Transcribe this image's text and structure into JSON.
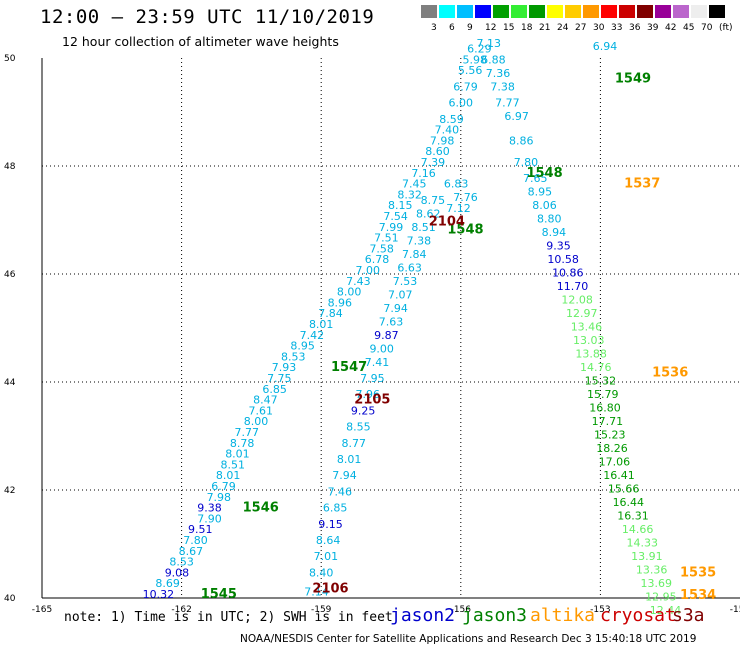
{
  "header": {
    "title": "12:00 — 23:59 UTC 11/10/2019",
    "subtitle": "12 hour collection of altimeter wave heights"
  },
  "legend": {
    "colors": [
      "#7f7f7f",
      "#00ffff",
      "#00bfff",
      "#0000ff",
      "#00a000",
      "#33ee33",
      "#009900",
      "#ffff00",
      "#ffcc00",
      "#ff9900",
      "#ff0000",
      "#cc0000",
      "#800000",
      "#990099",
      "#bb66cc",
      "#eeeeee",
      "#000000"
    ],
    "labels": [
      "3",
      "6",
      "9",
      "12",
      "15",
      "18",
      "21",
      "24",
      "27",
      "30",
      "33",
      "36",
      "39",
      "42",
      "45",
      "70",
      "(ft)"
    ]
  },
  "map": {
    "lon_ticks": [
      "-165",
      "-162",
      "-159",
      "-156",
      "-153",
      "-150"
    ],
    "lat_ticks": [
      "40",
      "42",
      "44",
      "46",
      "48",
      "50"
    ],
    "track_labels": [
      {
        "id": "1545",
        "color": "#008000",
        "lon": -161.2,
        "lat": 40.0
      },
      {
        "id": "1546",
        "color": "#008000",
        "lon": -160.3,
        "lat": 41.6
      },
      {
        "id": "1547",
        "color": "#008000",
        "lon": -158.4,
        "lat": 44.2
      },
      {
        "id": "1548",
        "color": "#008000",
        "lon": -155.9,
        "lat": 46.75
      },
      {
        "id": "2104",
        "color": "#800000",
        "lon": -156.3,
        "lat": 46.9
      },
      {
        "id": "2105",
        "color": "#800000",
        "lon": -157.9,
        "lat": 43.6
      },
      {
        "id": "2106",
        "color": "#800000",
        "lon": -158.8,
        "lat": 40.1
      },
      {
        "id": "1537",
        "color": "#ff9900",
        "lon": -152.1,
        "lat": 47.6
      },
      {
        "id": "1536",
        "color": "#ff9900",
        "lon": -151.5,
        "lat": 44.1
      },
      {
        "id": "1535",
        "color": "#ff9900",
        "lon": -150.9,
        "lat": 40.4
      },
      {
        "id": "1534",
        "color": "#ff9900",
        "lon": -150.9,
        "lat": 39.98
      },
      {
        "id": "1548",
        "color": "#008000",
        "lon": -154.2,
        "lat": 47.8
      },
      {
        "id": "1549",
        "color": "#008000",
        "lon": -152.3,
        "lat": 49.55
      }
    ],
    "values": [
      {
        "t": "10.32",
        "c": "#0000cc",
        "lon": -162.5,
        "lat": 40.0
      },
      {
        "t": "8.69",
        "c": "#00b0e0",
        "lon": -162.3,
        "lat": 40.2
      },
      {
        "t": "9.08",
        "c": "#0000cc",
        "lon": -162.1,
        "lat": 40.4
      },
      {
        "t": "8.53",
        "c": "#00b0e0",
        "lon": -162.0,
        "lat": 40.6
      },
      {
        "t": "8.67",
        "c": "#00b0e0",
        "lon": -161.8,
        "lat": 40.8
      },
      {
        "t": "7.80",
        "c": "#00b0e0",
        "lon": -161.7,
        "lat": 41.0
      },
      {
        "t": "9.51",
        "c": "#0000cc",
        "lon": -161.6,
        "lat": 41.2
      },
      {
        "t": "7.90",
        "c": "#00b0e0",
        "lon": -161.4,
        "lat": 41.4
      },
      {
        "t": "9.38",
        "c": "#0000cc",
        "lon": -161.4,
        "lat": 41.6
      },
      {
        "t": "7.98",
        "c": "#00b0e0",
        "lon": -161.2,
        "lat": 41.8
      },
      {
        "t": "6.79",
        "c": "#00b0e0",
        "lon": -161.1,
        "lat": 42.0
      },
      {
        "t": "8.01",
        "c": "#00b0e0",
        "lon": -161.0,
        "lat": 42.2
      },
      {
        "t": "8.51",
        "c": "#00b0e0",
        "lon": -160.9,
        "lat": 42.4
      },
      {
        "t": "8.01",
        "c": "#00b0e0",
        "lon": -160.8,
        "lat": 42.6
      },
      {
        "t": "8.78",
        "c": "#00b0e0",
        "lon": -160.7,
        "lat": 42.8
      },
      {
        "t": "7.77",
        "c": "#00b0e0",
        "lon": -160.6,
        "lat": 43.0
      },
      {
        "t": "8.00",
        "c": "#00b0e0",
        "lon": -160.4,
        "lat": 43.2
      },
      {
        "t": "7.61",
        "c": "#00b0e0",
        "lon": -160.3,
        "lat": 43.4
      },
      {
        "t": "8.47",
        "c": "#00b0e0",
        "lon": -160.2,
        "lat": 43.6
      },
      {
        "t": "6.85",
        "c": "#00b0e0",
        "lon": -160.0,
        "lat": 43.8
      },
      {
        "t": "7.75",
        "c": "#00b0e0",
        "lon": -159.9,
        "lat": 44.0
      },
      {
        "t": "7.93",
        "c": "#00b0e0",
        "lon": -159.8,
        "lat": 44.2
      },
      {
        "t": "8.53",
        "c": "#00b0e0",
        "lon": -159.6,
        "lat": 44.4
      },
      {
        "t": "8.95",
        "c": "#00b0e0",
        "lon": -159.4,
        "lat": 44.6
      },
      {
        "t": "7.42",
        "c": "#00b0e0",
        "lon": -159.2,
        "lat": 44.8
      },
      {
        "t": "8.01",
        "c": "#00b0e0",
        "lon": -159.0,
        "lat": 45.0
      },
      {
        "t": "7.84",
        "c": "#00b0e0",
        "lon": -158.8,
        "lat": 45.2
      },
      {
        "t": "8.96",
        "c": "#00b0e0",
        "lon": -158.6,
        "lat": 45.4
      },
      {
        "t": "8.00",
        "c": "#00b0e0",
        "lon": -158.4,
        "lat": 45.6
      },
      {
        "t": "7.43",
        "c": "#00b0e0",
        "lon": -158.2,
        "lat": 45.8
      },
      {
        "t": "7.00",
        "c": "#00b0e0",
        "lon": -158.0,
        "lat": 46.0
      },
      {
        "t": "6.78",
        "c": "#00b0e0",
        "lon": -157.8,
        "lat": 46.2
      },
      {
        "t": "7.58",
        "c": "#00b0e0",
        "lon": -157.7,
        "lat": 46.4
      },
      {
        "t": "7.51",
        "c": "#00b0e0",
        "lon": -157.6,
        "lat": 46.6
      },
      {
        "t": "7.99",
        "c": "#00b0e0",
        "lon": -157.5,
        "lat": 46.8
      },
      {
        "t": "7.54",
        "c": "#00b0e0",
        "lon": -157.4,
        "lat": 47.0
      },
      {
        "t": "8.15",
        "c": "#00b0e0",
        "lon": -157.3,
        "lat": 47.2
      },
      {
        "t": "8.32",
        "c": "#00b0e0",
        "lon": -157.1,
        "lat": 47.4
      },
      {
        "t": "7.45",
        "c": "#00b0e0",
        "lon": -157.0,
        "lat": 47.6
      },
      {
        "t": "7.16",
        "c": "#00b0e0",
        "lon": -156.8,
        "lat": 47.8
      },
      {
        "t": "7.39",
        "c": "#00b0e0",
        "lon": -156.6,
        "lat": 48.0
      },
      {
        "t": "8.60",
        "c": "#00b0e0",
        "lon": -156.5,
        "lat": 48.2
      },
      {
        "t": "7.98",
        "c": "#00b0e0",
        "lon": -156.4,
        "lat": 48.4
      },
      {
        "t": "7.40",
        "c": "#00b0e0",
        "lon": -156.3,
        "lat": 48.6
      },
      {
        "t": "8.59",
        "c": "#00b0e0",
        "lon": -156.2,
        "lat": 48.8
      },
      {
        "t": "6.00",
        "c": "#00b0e0",
        "lon": -156.0,
        "lat": 49.1
      },
      {
        "t": "6.79",
        "c": "#00b0e0",
        "lon": -155.9,
        "lat": 49.4
      },
      {
        "t": "5.56",
        "c": "#00b0e0",
        "lon": -155.8,
        "lat": 49.7
      },
      {
        "t": "5.98",
        "c": "#00b0e0",
        "lon": -155.7,
        "lat": 49.9
      },
      {
        "t": "6.29",
        "c": "#00b0e0",
        "lon": -155.6,
        "lat": 50.1
      },
      {
        "t": "7.13",
        "c": "#00b0e0",
        "lon": -155.4,
        "lat": 50.2
      },
      {
        "t": "6.88",
        "c": "#00b0e0",
        "lon": -155.3,
        "lat": 49.9
      },
      {
        "t": "7.36",
        "c": "#00b0e0",
        "lon": -155.2,
        "lat": 49.65
      },
      {
        "t": "7.38",
        "c": "#00b0e0",
        "lon": -155.1,
        "lat": 49.4
      },
      {
        "t": "7.77",
        "c": "#00b0e0",
        "lon": -155.0,
        "lat": 49.1
      },
      {
        "t": "6.83",
        "c": "#00b0e0",
        "lon": -156.1,
        "lat": 47.6
      },
      {
        "t": "7.76",
        "c": "#00b0e0",
        "lon": -155.9,
        "lat": 47.35
      },
      {
        "t": "7.12",
        "c": "#00b0e0",
        "lon": -156.05,
        "lat": 47.15
      },
      {
        "t": "7.14",
        "c": "#00b0e0",
        "lon": -159.1,
        "lat": 40.05
      },
      {
        "t": "8.40",
        "c": "#00b0e0",
        "lon": -159.0,
        "lat": 40.4
      },
      {
        "t": "7.01",
        "c": "#00b0e0",
        "lon": -158.9,
        "lat": 40.7
      },
      {
        "t": "8.64",
        "c": "#00b0e0",
        "lon": -158.85,
        "lat": 41.0
      },
      {
        "t": "9.15",
        "c": "#0000cc",
        "lon": -158.8,
        "lat": 41.3
      },
      {
        "t": "6.85",
        "c": "#00b0e0",
        "lon": -158.7,
        "lat": 41.6
      },
      {
        "t": "7.46",
        "c": "#00b0e0",
        "lon": -158.6,
        "lat": 41.9
      },
      {
        "t": "7.94",
        "c": "#00b0e0",
        "lon": -158.5,
        "lat": 42.2
      },
      {
        "t": "8.01",
        "c": "#00b0e0",
        "lon": -158.4,
        "lat": 42.5
      },
      {
        "t": "8.77",
        "c": "#00b0e0",
        "lon": -158.3,
        "lat": 42.8
      },
      {
        "t": "8.55",
        "c": "#00b0e0",
        "lon": -158.2,
        "lat": 43.1
      },
      {
        "t": "9.25",
        "c": "#0000cc",
        "lon": -158.1,
        "lat": 43.4
      },
      {
        "t": "7.96",
        "c": "#00b0e0",
        "lon": -158.0,
        "lat": 43.7
      },
      {
        "t": "7.95",
        "c": "#00b0e0",
        "lon": -157.9,
        "lat": 44.0
      },
      {
        "t": "7.41",
        "c": "#00b0e0",
        "lon": -157.8,
        "lat": 44.3
      },
      {
        "t": "9.00",
        "c": "#00b0e0",
        "lon": -157.7,
        "lat": 44.55
      },
      {
        "t": "9.87",
        "c": "#0000cc",
        "lon": -157.6,
        "lat": 44.8
      },
      {
        "t": "7.63",
        "c": "#00b0e0",
        "lon": -157.5,
        "lat": 45.05
      },
      {
        "t": "7.94",
        "c": "#00b0e0",
        "lon": -157.4,
        "lat": 45.3
      },
      {
        "t": "7.07",
        "c": "#00b0e0",
        "lon": -157.3,
        "lat": 45.55
      },
      {
        "t": "7.53",
        "c": "#00b0e0",
        "lon": -157.2,
        "lat": 45.8
      },
      {
        "t": "6.63",
        "c": "#00b0e0",
        "lon": -157.1,
        "lat": 46.05
      },
      {
        "t": "7.84",
        "c": "#00b0e0",
        "lon": -157.0,
        "lat": 46.3
      },
      {
        "t": "7.38",
        "c": "#00b0e0",
        "lon": -156.9,
        "lat": 46.55
      },
      {
        "t": "8.51",
        "c": "#00b0e0",
        "lon": -156.8,
        "lat": 46.8
      },
      {
        "t": "8.62",
        "c": "#00b0e0",
        "lon": -156.7,
        "lat": 47.05
      },
      {
        "t": "8.75",
        "c": "#00b0e0",
        "lon": -156.6,
        "lat": 47.3
      },
      {
        "t": "7.80",
        "c": "#00b0e0",
        "lon": -154.6,
        "lat": 48.0
      },
      {
        "t": "8.86",
        "c": "#00b0e0",
        "lon": -154.7,
        "lat": 48.4
      },
      {
        "t": "6.97",
        "c": "#00b0e0",
        "lon": -154.8,
        "lat": 48.85
      },
      {
        "t": "7.65",
        "c": "#00b0e0",
        "lon": -154.4,
        "lat": 47.7
      },
      {
        "t": "8.95",
        "c": "#00b0e0",
        "lon": -154.3,
        "lat": 47.45
      },
      {
        "t": "8.06",
        "c": "#00b0e0",
        "lon": -154.2,
        "lat": 47.2
      },
      {
        "t": "8.80",
        "c": "#00b0e0",
        "lon": -154.1,
        "lat": 46.95
      },
      {
        "t": "8.94",
        "c": "#00b0e0",
        "lon": -154.0,
        "lat": 46.7
      },
      {
        "t": "9.35",
        "c": "#0000cc",
        "lon": -153.9,
        "lat": 46.45
      },
      {
        "t": "10.58",
        "c": "#0000cc",
        "lon": -153.8,
        "lat": 46.2
      },
      {
        "t": "10.86",
        "c": "#0000cc",
        "lon": -153.7,
        "lat": 45.95
      },
      {
        "t": "11.70",
        "c": "#0000cc",
        "lon": -153.6,
        "lat": 45.7
      },
      {
        "t": "12.08",
        "c": "#66ee66",
        "lon": -153.5,
        "lat": 45.45
      },
      {
        "t": "12.97",
        "c": "#66ee66",
        "lon": -153.4,
        "lat": 45.2
      },
      {
        "t": "13.46",
        "c": "#66ee66",
        "lon": -153.3,
        "lat": 44.95
      },
      {
        "t": "13.03",
        "c": "#66ee66",
        "lon": -153.25,
        "lat": 44.7
      },
      {
        "t": "13.88",
        "c": "#66ee66",
        "lon": -153.2,
        "lat": 44.45
      },
      {
        "t": "14.76",
        "c": "#66ee66",
        "lon": -153.1,
        "lat": 44.2
      },
      {
        "t": "15.32",
        "c": "#009900",
        "lon": -153.0,
        "lat": 43.95
      },
      {
        "t": "15.79",
        "c": "#009900",
        "lon": -152.95,
        "lat": 43.7
      },
      {
        "t": "16.80",
        "c": "#009900",
        "lon": -152.9,
        "lat": 43.45
      },
      {
        "t": "17.71",
        "c": "#009900",
        "lon": -152.85,
        "lat": 43.2
      },
      {
        "t": "15.23",
        "c": "#009900",
        "lon": -152.8,
        "lat": 42.95
      },
      {
        "t": "18.26",
        "c": "#009900",
        "lon": -152.75,
        "lat": 42.7
      },
      {
        "t": "17.06",
        "c": "#009900",
        "lon": -152.7,
        "lat": 42.45
      },
      {
        "t": "16.41",
        "c": "#009900",
        "lon": -152.6,
        "lat": 42.2
      },
      {
        "t": "15.66",
        "c": "#009900",
        "lon": -152.5,
        "lat": 41.95
      },
      {
        "t": "16.44",
        "c": "#009900",
        "lon": -152.4,
        "lat": 41.7
      },
      {
        "t": "16.31",
        "c": "#009900",
        "lon": -152.3,
        "lat": 41.45
      },
      {
        "t": "14.66",
        "c": "#66ee66",
        "lon": -152.2,
        "lat": 41.2
      },
      {
        "t": "14.33",
        "c": "#66ee66",
        "lon": -152.1,
        "lat": 40.95
      },
      {
        "t": "13.91",
        "c": "#66ee66",
        "lon": -152.0,
        "lat": 40.7
      },
      {
        "t": "13.36",
        "c": "#66ee66",
        "lon": -151.9,
        "lat": 40.45
      },
      {
        "t": "13.69",
        "c": "#66ee66",
        "lon": -151.8,
        "lat": 40.2
      },
      {
        "t": "12.95",
        "c": "#66ee66",
        "lon": -151.7,
        "lat": 39.95
      },
      {
        "t": "12.44",
        "c": "#66ee66",
        "lon": -151.6,
        "lat": 39.7
      },
      {
        "t": "6.94",
        "c": "#00b0e0",
        "lon": -152.9,
        "lat": 50.15
      }
    ]
  },
  "note": "note: 1) Time is in UTC; 2) SWH is in feet",
  "satellites": [
    {
      "name": "jason2",
      "color": "#0000cc"
    },
    {
      "name": "jason3",
      "color": "#008000"
    },
    {
      "name": "altika",
      "color": "#ff9900"
    },
    {
      "name": "cryosat",
      "color": "#cc0000"
    },
    {
      "name": "s3a",
      "color": "#800000"
    }
  ],
  "footer": "NOAA/NESDIS Center for Satellite Applications and Research   Dec  3 15:40:18 UTC 2019"
}
